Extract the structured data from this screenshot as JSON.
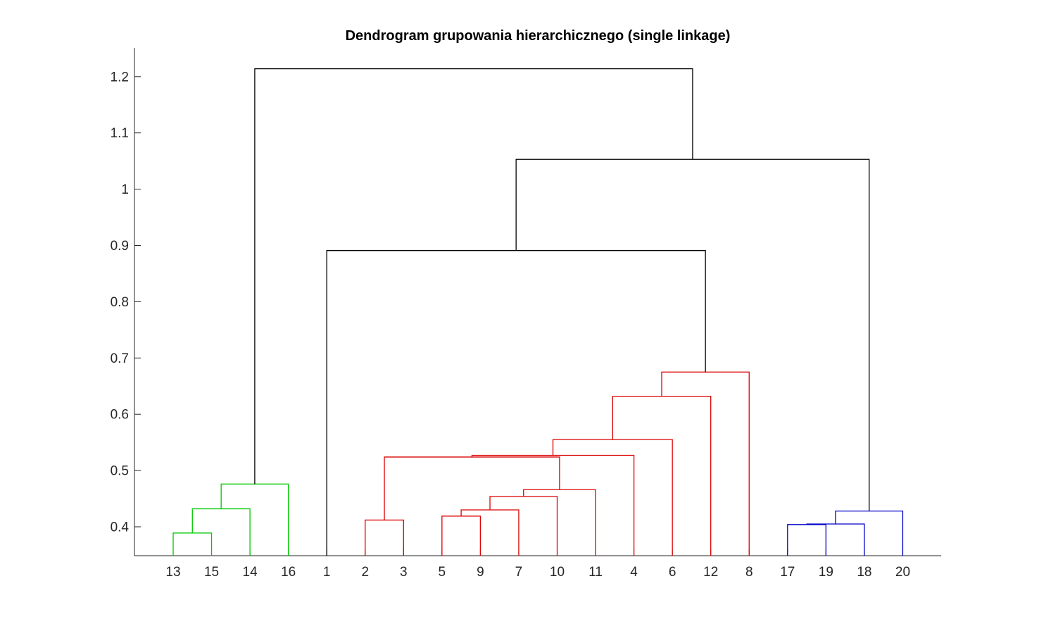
{
  "chart_data": {
    "type": "dendrogram",
    "title": "Dendrogram grupowania hierarchicznego (single linkage)",
    "xlabel": "",
    "ylabel": "",
    "ylim": [
      0.35,
      1.25
    ],
    "yticks": [
      0.4,
      0.5,
      0.6,
      0.7,
      0.8,
      0.9,
      1,
      1.1,
      1.2
    ],
    "ytick_labels": [
      "0.4",
      "0.5",
      "0.6",
      "0.7",
      "0.8",
      "0.9",
      "1",
      "1.1",
      "1.2"
    ],
    "leaf_order": [
      "13",
      "15",
      "14",
      "16",
      "1",
      "2",
      "3",
      "5",
      "9",
      "7",
      "10",
      "11",
      "4",
      "6",
      "12",
      "8",
      "17",
      "19",
      "18",
      "20"
    ],
    "cluster_colors": {
      "green": "#00c800",
      "red": "#dc0000",
      "blue": "#0000c8",
      "above_threshold": "#000000"
    },
    "links": [
      {
        "left": "13",
        "right": "15",
        "height": 0.389,
        "color": "green"
      },
      {
        "left": "13+15",
        "right": "14",
        "height": 0.432,
        "color": "green"
      },
      {
        "left": "13+15+14",
        "right": "16",
        "height": 0.476,
        "color": "green"
      },
      {
        "left": "2",
        "right": "3",
        "height": 0.412,
        "color": "red"
      },
      {
        "left": "5",
        "right": "9",
        "height": 0.419,
        "color": "red"
      },
      {
        "left": "5+9",
        "right": "7",
        "height": 0.43,
        "color": "red"
      },
      {
        "left": "5+9+7",
        "right": "10",
        "height": 0.454,
        "color": "red"
      },
      {
        "left": "5+9+7+10",
        "right": "11",
        "height": 0.466,
        "color": "red"
      },
      {
        "left": "2+3",
        "right": "5+9+7+10+11",
        "height": 0.524,
        "color": "red"
      },
      {
        "left": "2+3+5+9+7+10+11",
        "right": "4",
        "height": 0.527,
        "color": "red"
      },
      {
        "left": "2+3+5+9+7+10+11+4",
        "right": "6",
        "height": 0.555,
        "color": "red"
      },
      {
        "left": "2+3+5+9+7+10+11+4+6",
        "right": "12",
        "height": 0.632,
        "color": "red"
      },
      {
        "left": "2+3+5+9+7+10+11+4+6+12",
        "right": "8",
        "height": 0.675,
        "color": "red"
      },
      {
        "left": "17",
        "right": "19",
        "height": 0.404,
        "color": "blue"
      },
      {
        "left": "17+19",
        "right": "18",
        "height": 0.405,
        "color": "blue"
      },
      {
        "left": "17+19+18",
        "right": "20",
        "height": 0.428,
        "color": "blue"
      },
      {
        "left": "1",
        "right": "2+3+5+9+7+10+11+4+6+12+8",
        "height": 0.891,
        "color": "above_threshold"
      },
      {
        "left": "1+2+3+5+9+7+10+11+4+6+12+8",
        "right": "17+19+18+20",
        "height": 1.053,
        "color": "above_threshold"
      },
      {
        "left": "13+15+14+16",
        "right": "1+2+3+5+9+7+10+11+4+6+12+8+17+19+18+20",
        "height": 1.214,
        "color": "above_threshold"
      }
    ]
  }
}
